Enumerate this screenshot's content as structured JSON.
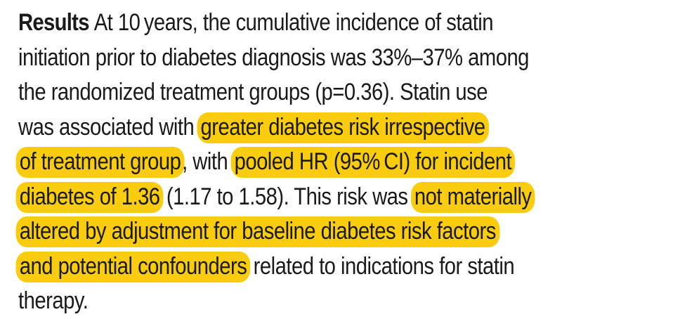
{
  "abstract": {
    "heading": "Results",
    "lines": [
      [
        {
          "text": "At 10 years, the cumulative incidence of statin",
          "highlight": false
        }
      ],
      [
        {
          "text": "initiation prior to diabetes diagnosis was 33%–37% among",
          "highlight": false
        }
      ],
      [
        {
          "text": "the randomized treatment groups (p=0.36). Statin use",
          "highlight": false
        }
      ],
      [
        {
          "text": "was associated with ",
          "highlight": false
        },
        {
          "text": "greater diabetes risk irrespective",
          "highlight": true
        }
      ],
      [
        {
          "text": "of treatment group",
          "highlight": true
        },
        {
          "text": ", with ",
          "highlight": false
        },
        {
          "text": "pooled HR (95% CI) for incident",
          "highlight": true
        }
      ],
      [
        {
          "text": "diabetes of 1.36",
          "highlight": true
        },
        {
          "text": " (1.17 to 1.58). This risk was ",
          "highlight": false
        },
        {
          "text": "not materially",
          "highlight": true
        }
      ],
      [
        {
          "text": "altered by adjustment for baseline diabetes risk factors",
          "highlight": true
        }
      ],
      [
        {
          "text": "and potential confounders",
          "highlight": true
        },
        {
          "text": " related to indications for statin",
          "highlight": false
        }
      ],
      [
        {
          "text": "therapy.",
          "highlight": false
        }
      ]
    ]
  },
  "colors": {
    "highlight": "#f9cc0f",
    "text": "#1a1a1a"
  }
}
